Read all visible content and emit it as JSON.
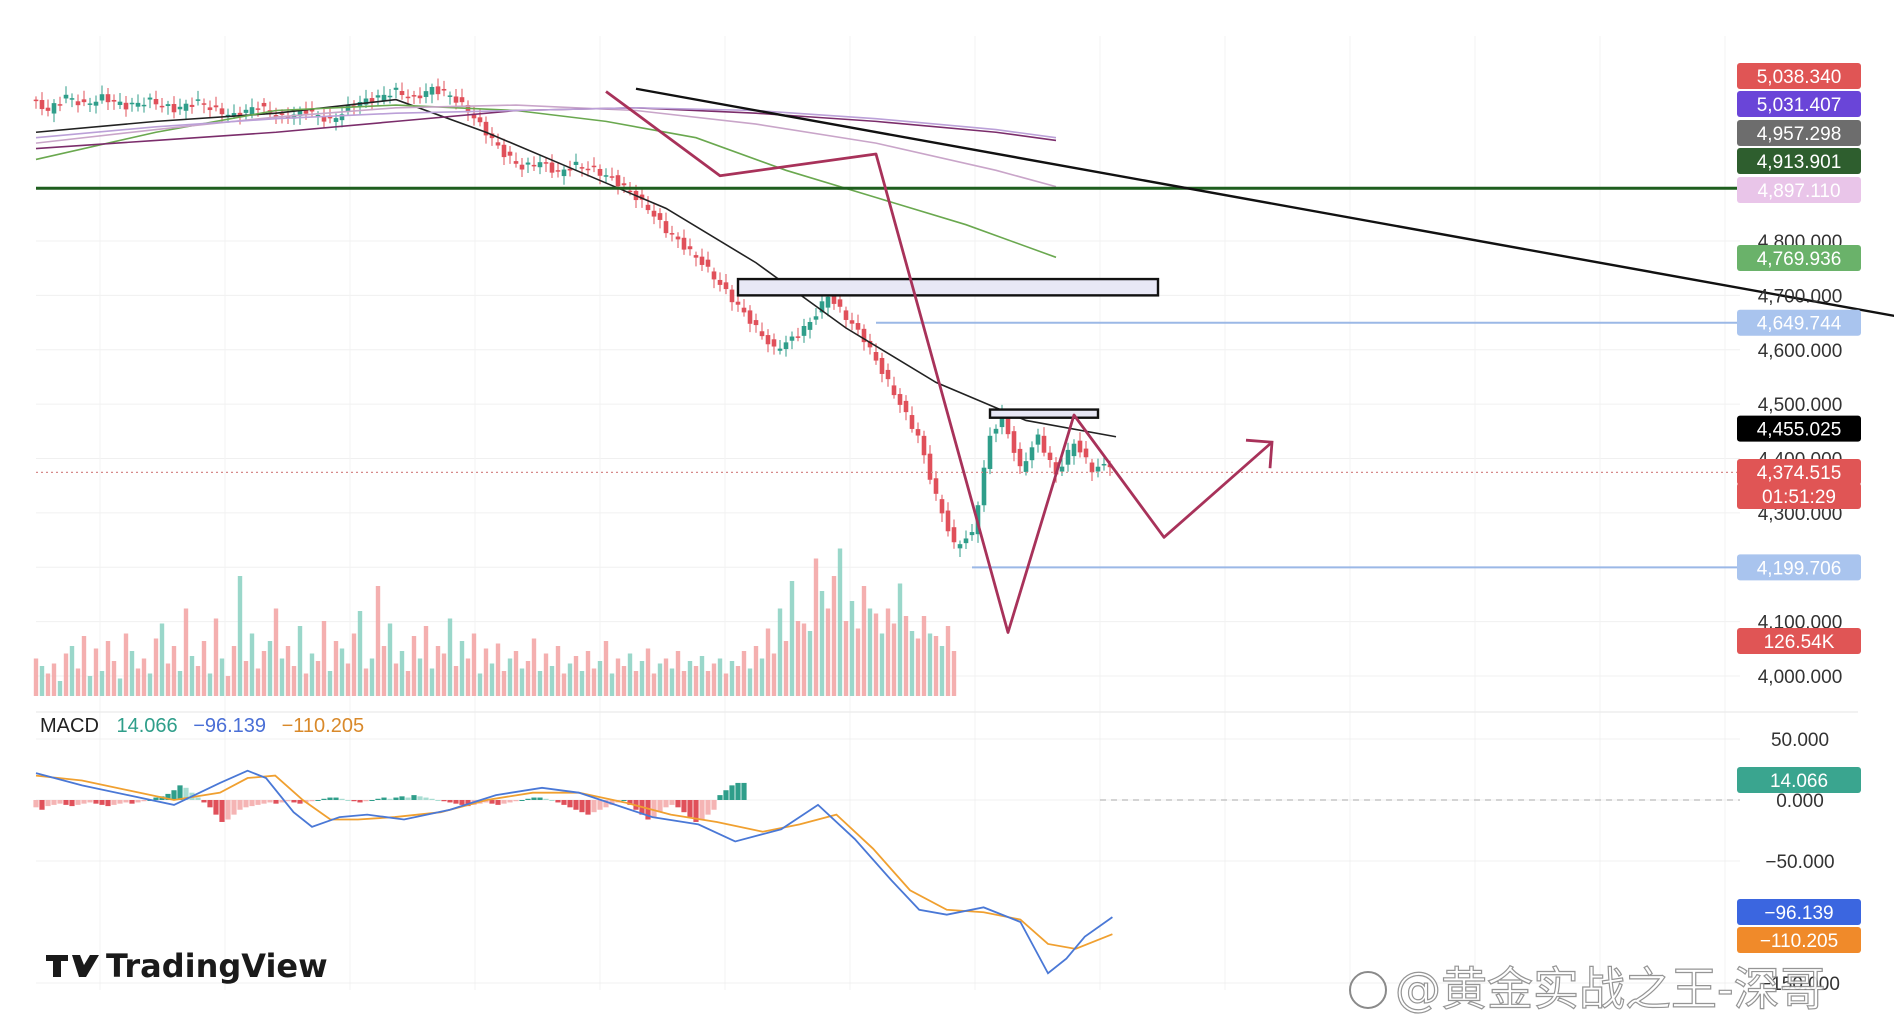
{
  "chart_data": [
    {
      "type": "candlestick",
      "title": "",
      "xlabel": "",
      "ylabel": "",
      "ylim": [
        4000,
        5080
      ],
      "grid": true,
      "y_ticks": [
        "4,000.000",
        "4,100.000",
        "4,200.000",
        "4,300.000",
        "4,400.000",
        "4,500.000",
        "4,600.000",
        "4,700.000",
        "4,800.000"
      ],
      "tick_values": [
        4000,
        4100,
        4200,
        4300,
        4400,
        4500,
        4600,
        4700,
        4800
      ],
      "price_path": [
        [
          0,
          5060
        ],
        [
          3,
          5040
        ],
        [
          6,
          5066
        ],
        [
          9,
          5050
        ],
        [
          12,
          5064
        ],
        [
          16,
          5048
        ],
        [
          20,
          5058
        ],
        [
          24,
          5042
        ],
        [
          28,
          5056
        ],
        [
          31,
          5040
        ],
        [
          34,
          5030
        ],
        [
          38,
          5048
        ],
        [
          42,
          5026
        ],
        [
          46,
          5040
        ],
        [
          50,
          5020
        ],
        [
          54,
          5052
        ],
        [
          58,
          5064
        ],
        [
          61,
          5076
        ],
        [
          64,
          5062
        ],
        [
          67,
          5080
        ],
        [
          70,
          5068
        ],
        [
          73,
          5040
        ],
        [
          76,
          5000
        ],
        [
          79,
          4960
        ],
        [
          82,
          4935
        ],
        [
          85,
          4945
        ],
        [
          88,
          4925
        ],
        [
          91,
          4940
        ],
        [
          94,
          4930
        ],
        [
          97,
          4915
        ],
        [
          100,
          4890
        ],
        [
          103,
          4860
        ],
        [
          106,
          4820
        ],
        [
          109,
          4790
        ],
        [
          112,
          4760
        ],
        [
          115,
          4720
        ],
        [
          118,
          4680
        ],
        [
          121,
          4640
        ],
        [
          124,
          4600
        ],
        [
          127,
          4620
        ],
        [
          130,
          4650
        ],
        [
          133,
          4700
        ],
        [
          136,
          4660
        ],
        [
          139,
          4620
        ],
        [
          142,
          4560
        ],
        [
          145,
          4500
        ],
        [
          148,
          4440
        ],
        [
          151,
          4330
        ],
        [
          154,
          4240
        ],
        [
          157,
          4260
        ],
        [
          160,
          4440
        ],
        [
          162,
          4480
        ],
        [
          165,
          4380
        ],
        [
          168,
          4440
        ],
        [
          171,
          4370
        ],
        [
          174,
          4430
        ],
        [
          177,
          4380
        ],
        [
          180,
          4390
        ]
      ],
      "moving_averages": [
        {
          "name": "MA black",
          "color": "#222222",
          "points": [
            [
              0,
              5000
            ],
            [
              20,
              5020
            ],
            [
              40,
              5035
            ],
            [
              60,
              5060
            ],
            [
              75,
              5000
            ],
            [
              90,
              4930
            ],
            [
              105,
              4860
            ],
            [
              120,
              4760
            ],
            [
              135,
              4640
            ],
            [
              150,
              4540
            ],
            [
              165,
              4470
            ],
            [
              180,
              4440
            ]
          ]
        },
        {
          "name": "MA green",
          "color": "#6aa84f",
          "points": [
            [
              0,
              4950
            ],
            [
              20,
              5000
            ],
            [
              40,
              5040
            ],
            [
              60,
              5050
            ],
            [
              80,
              5040
            ],
            [
              95,
              5020
            ],
            [
              110,
              4990
            ],
            [
              125,
              4930
            ],
            [
              140,
              4880
            ],
            [
              155,
              4830
            ],
            [
              170,
              4770
            ]
          ]
        },
        {
          "name": "MA pink",
          "color": "#c9a5c9",
          "points": [
            [
              0,
              4980
            ],
            [
              20,
              5005
            ],
            [
              40,
              5028
            ],
            [
              60,
              5045
            ],
            [
              80,
              5050
            ],
            [
              100,
              5040
            ],
            [
              120,
              5015
            ],
            [
              140,
              4980
            ],
            [
              160,
              4930
            ],
            [
              170,
              4900
            ]
          ]
        },
        {
          "name": "MA purple",
          "color": "#7b2d6b",
          "points": [
            [
              0,
              4970
            ],
            [
              20,
              4985
            ],
            [
              40,
              5000
            ],
            [
              60,
              5020
            ],
            [
              80,
              5040
            ],
            [
              100,
              5045
            ],
            [
              120,
              5035
            ],
            [
              140,
              5020
            ],
            [
              160,
              5000
            ],
            [
              170,
              4985
            ]
          ]
        },
        {
          "name": "MA lightpurple",
          "color": "#bba0d8",
          "points": [
            [
              0,
              4990
            ],
            [
              20,
              5010
            ],
            [
              40,
              5025
            ],
            [
              60,
              5035
            ],
            [
              80,
              5040
            ],
            [
              100,
              5045
            ],
            [
              120,
              5040
            ],
            [
              140,
              5025
            ],
            [
              160,
              5005
            ],
            [
              170,
              4990
            ]
          ]
        }
      ],
      "horizontal_levels": [
        {
          "value": 4897.11,
          "color": "#1e5e1e",
          "extent": "full"
        },
        {
          "value": 4649.744,
          "color": "#9bb8e6",
          "extent": "from-bar-140"
        },
        {
          "value": 4199.706,
          "color": "#9bb8e6",
          "extent": "from-bar-156"
        },
        {
          "value": 4374.515,
          "color": "#d68a8a",
          "extent": "dotted-full"
        }
      ],
      "trendline": {
        "from": [
          100,
          5080
        ],
        "to": [
          316,
          4649.744
        ],
        "color": "#111111"
      },
      "zones": [
        {
          "x_from": 117,
          "x_to": 187,
          "y_from": 4730,
          "y_to": 4700
        },
        {
          "x_from": 159,
          "x_to": 177,
          "y_from": 4490,
          "y_to": 4475
        }
      ],
      "projection": {
        "color": "#a8325a",
        "points": [
          [
            95,
            5075
          ],
          [
            114,
            4920
          ],
          [
            140,
            4960
          ],
          [
            162,
            4080
          ],
          [
            173,
            4480
          ],
          [
            188,
            4255
          ],
          [
            206,
            4430
          ]
        ]
      },
      "price_badges": [
        {
          "label": "5,038.340",
          "value": 5038.34,
          "color": "#e05555"
        },
        {
          "label": "5,031.407",
          "value": 5031.407,
          "color": "#6a45d8"
        },
        {
          "label": "4,957.298",
          "value": 4957.298,
          "color": "#6d6d6d"
        },
        {
          "label": "4,913.901",
          "value": 4913.901,
          "color": "#2e5e2e"
        },
        {
          "label": "4,897.110",
          "value": 4897.11,
          "color": "#e9c5e9"
        },
        {
          "label": "4,769.936",
          "value": 4769.936,
          "color": "#6ab26a"
        },
        {
          "label": "4,649.744",
          "value": 4649.744,
          "color": "#a9c4ee"
        },
        {
          "label": "4,455.025",
          "value": 4455.025,
          "color": "#000000"
        },
        {
          "label": "4,374.515",
          "value": 4374.515,
          "color": "#e05555"
        },
        {
          "label": "01:51:29",
          "value": 4325,
          "color": "#e05555"
        },
        {
          "label": "4,199.706",
          "value": 4199.706,
          "color": "#a9c4ee"
        }
      ]
    },
    {
      "type": "bar",
      "name": "Volume",
      "label": "126.54K",
      "values": [
        30,
        24,
        18,
        26,
        12,
        34,
        40,
        22,
        48,
        16,
        38,
        20,
        44,
        28,
        14,
        50,
        36,
        22,
        30,
        18,
        46,
        58,
        26,
        40,
        20,
        70,
        32,
        24,
        44,
        18,
        62,
        30,
        16,
        40,
        96,
        28,
        50,
        22,
        36,
        44,
        70,
        30,
        40,
        24,
        56,
        18,
        34,
        28,
        60,
        20,
        44,
        38,
        26,
        50,
        68,
        22,
        30,
        88,
        40,
        58,
        26,
        36,
        20,
        48,
        30,
        56,
        22,
        40,
        34,
        62,
        24,
        44,
        30,
        50,
        18,
        38,
        26,
        42,
        20,
        30,
        36,
        22,
        28,
        46,
        20,
        34,
        24,
        40,
        18,
        26,
        32,
        20,
        36,
        22,
        28,
        44,
        18,
        30,
        24,
        34,
        20,
        28,
        38,
        18,
        26,
        30,
        22,
        36,
        20,
        28,
        24,
        32,
        20,
        26,
        30,
        18,
        28,
        24,
        36,
        22,
        40,
        30,
        54,
        34,
        70,
        44,
        92,
        60,
        58,
        52,
        110,
        84,
        70,
        96,
        118,
        60,
        76,
        54,
        88,
        70,
        66,
        50,
        70,
        58,
        90,
        64,
        52,
        46,
        64,
        50,
        48,
        40,
        56,
        36
      ]
    },
    {
      "type": "line",
      "name": "MACD",
      "legend": {
        "label": "MACD",
        "hist": "14.066",
        "macd": "−96.139",
        "signal": "−110.205"
      },
      "ylim": [
        -160,
        80
      ],
      "y_ticks": [
        "50.000",
        "0.000",
        "−50.000",
        "−150.000"
      ],
      "tick_values": [
        50,
        0,
        -50,
        -150
      ],
      "macd_line": [
        [
          0,
          22
        ],
        [
          10,
          12
        ],
        [
          20,
          4
        ],
        [
          30,
          -4
        ],
        [
          40,
          14
        ],
        [
          46,
          24
        ],
        [
          50,
          18
        ],
        [
          56,
          -10
        ],
        [
          60,
          -22
        ],
        [
          66,
          -14
        ],
        [
          72,
          -12
        ],
        [
          80,
          -16
        ],
        [
          90,
          -8
        ],
        [
          100,
          4
        ],
        [
          110,
          10
        ],
        [
          118,
          6
        ],
        [
          126,
          -4
        ],
        [
          134,
          -14
        ],
        [
          144,
          -20
        ],
        [
          152,
          -34
        ],
        [
          162,
          -24
        ],
        [
          170,
          -4
        ],
        [
          178,
          -32
        ],
        [
          186,
          -66
        ],
        [
          192,
          -90
        ],
        [
          198,
          -94
        ],
        [
          206,
          -88
        ],
        [
          214,
          -100
        ],
        [
          220,
          -142
        ],
        [
          224,
          -130
        ],
        [
          228,
          -112
        ],
        [
          234,
          -96
        ]
      ],
      "signal_line": [
        [
          0,
          20
        ],
        [
          10,
          16
        ],
        [
          20,
          8
        ],
        [
          30,
          0
        ],
        [
          40,
          6
        ],
        [
          46,
          18
        ],
        [
          52,
          20
        ],
        [
          58,
          0
        ],
        [
          64,
          -16
        ],
        [
          70,
          -16
        ],
        [
          78,
          -14
        ],
        [
          88,
          -10
        ],
        [
          98,
          0
        ],
        [
          108,
          6
        ],
        [
          118,
          6
        ],
        [
          128,
          -2
        ],
        [
          138,
          -12
        ],
        [
          148,
          -18
        ],
        [
          158,
          -26
        ],
        [
          166,
          -20
        ],
        [
          174,
          -12
        ],
        [
          182,
          -40
        ],
        [
          190,
          -74
        ],
        [
          198,
          -90
        ],
        [
          206,
          -92
        ],
        [
          214,
          -98
        ],
        [
          220,
          -118
        ],
        [
          226,
          -122
        ],
        [
          234,
          -110
        ]
      ],
      "histogram": [
        -6,
        -8,
        -5,
        -4,
        -3,
        -4,
        -5,
        -4,
        -3,
        -2,
        -3,
        -4,
        -5,
        -4,
        -3,
        -2,
        -3,
        -2,
        -1,
        0,
        2,
        3,
        5,
        8,
        12,
        10,
        6,
        2,
        -2,
        -6,
        -12,
        -18,
        -16,
        -12,
        -8,
        -6,
        -5,
        -4,
        -3,
        -2,
        -3,
        -2,
        -1,
        -2,
        -3,
        -2,
        -1,
        0,
        1,
        2,
        2,
        1,
        0,
        -1,
        -2,
        -1,
        0,
        1,
        2,
        1,
        2,
        3,
        2,
        4,
        3,
        2,
        1,
        0,
        -1,
        -2,
        -3,
        -4,
        -5,
        -4,
        -3,
        -2,
        -3,
        -4,
        -3,
        -2,
        -1,
        0,
        1,
        2,
        2,
        1,
        0,
        -2,
        -4,
        -6,
        -8,
        -10,
        -12,
        -10,
        -8,
        -6,
        -4,
        -2,
        0,
        -4,
        -8,
        -12,
        -16,
        -14,
        -10,
        -6,
        -4,
        -6,
        -10,
        -14,
        -18,
        -16,
        -12,
        -8,
        4,
        8,
        12,
        14,
        14
      ]
    }
  ],
  "branding": {
    "logo_text": "TradingView",
    "watermark": "@黄金实战之王-深哥"
  }
}
